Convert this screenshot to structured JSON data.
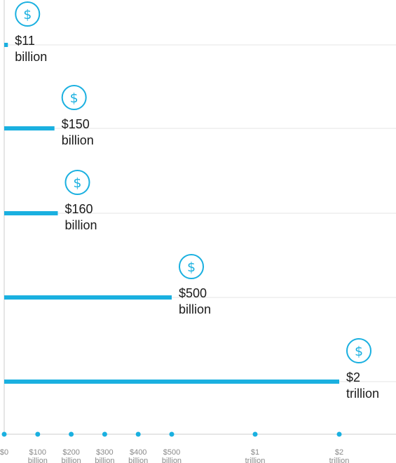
{
  "chart_data": {
    "type": "bar",
    "orientation": "horizontal",
    "unit": "USD",
    "values": [
      11000000000,
      150000000000,
      160000000000,
      500000000000,
      2000000000000
    ],
    "data_labels": [
      [
        "$11",
        "billion"
      ],
      [
        "$150",
        "billion"
      ],
      [
        "$160",
        "billion"
      ],
      [
        "$500",
        "billion"
      ],
      [
        "$2",
        "trillion"
      ]
    ],
    "icon": "dollar-circle-icon",
    "x_ticks": [
      {
        "value": 0,
        "label": [
          "$0"
        ]
      },
      {
        "value": 100000000000,
        "label": [
          "$100",
          "billion"
        ]
      },
      {
        "value": 200000000000,
        "label": [
          "$200",
          "billion"
        ]
      },
      {
        "value": 300000000000,
        "label": [
          "$300",
          "billion"
        ]
      },
      {
        "value": 400000000000,
        "label": [
          "$400",
          "billion"
        ]
      },
      {
        "value": 500000000000,
        "label": [
          "$500",
          "billion"
        ]
      },
      {
        "value": 1000000000000,
        "label": [
          "$1",
          "trillion"
        ]
      },
      {
        "value": 2000000000000,
        "label": [
          "$2",
          "trillion"
        ]
      }
    ],
    "x_axis_scale": "piecewise",
    "grid": true,
    "colors": {
      "bar": "#1ab0e0",
      "icon": "#1ab0e0",
      "grid": "#e6e6e6",
      "axis": "#cccccc",
      "tick_text": "#8a8a8a",
      "label_text": "#1a1a1a"
    }
  }
}
